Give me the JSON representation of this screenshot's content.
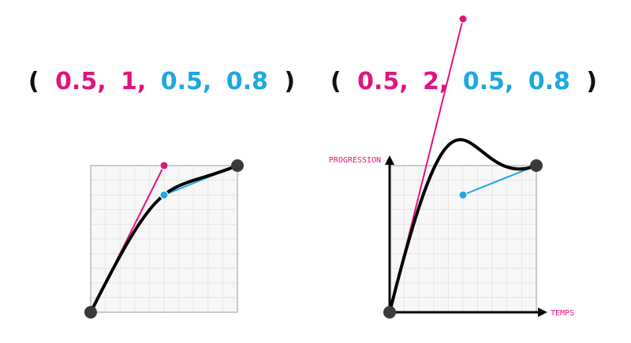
{
  "colors": {
    "p1": "#e0147e",
    "p2": "#1ea7e1",
    "curve": "#000000",
    "endpoint": "#3a3a3a",
    "grid": "#e4e4e4",
    "frame": "#9a9a9a",
    "background": "#f7f7f7"
  },
  "diagrams": [
    {
      "id": "left",
      "title": {
        "open": "(",
        "x1": "0.5,",
        "y1": "1,",
        "x2": "0.5,",
        "y2": "0.8",
        "close": ")"
      },
      "bezier": [
        0.5,
        1,
        0.5,
        0.8
      ],
      "axes": null
    },
    {
      "id": "right",
      "title": {
        "open": "(",
        "x1": "0.5,",
        "y1": "2,",
        "x2": "0.5,",
        "y2": "0.8",
        "close": ")"
      },
      "bezier": [
        0.5,
        2,
        0.5,
        0.8
      ],
      "axes": {
        "y_label": "PROGRESSION",
        "x_label": "TEMPS"
      }
    }
  ]
}
